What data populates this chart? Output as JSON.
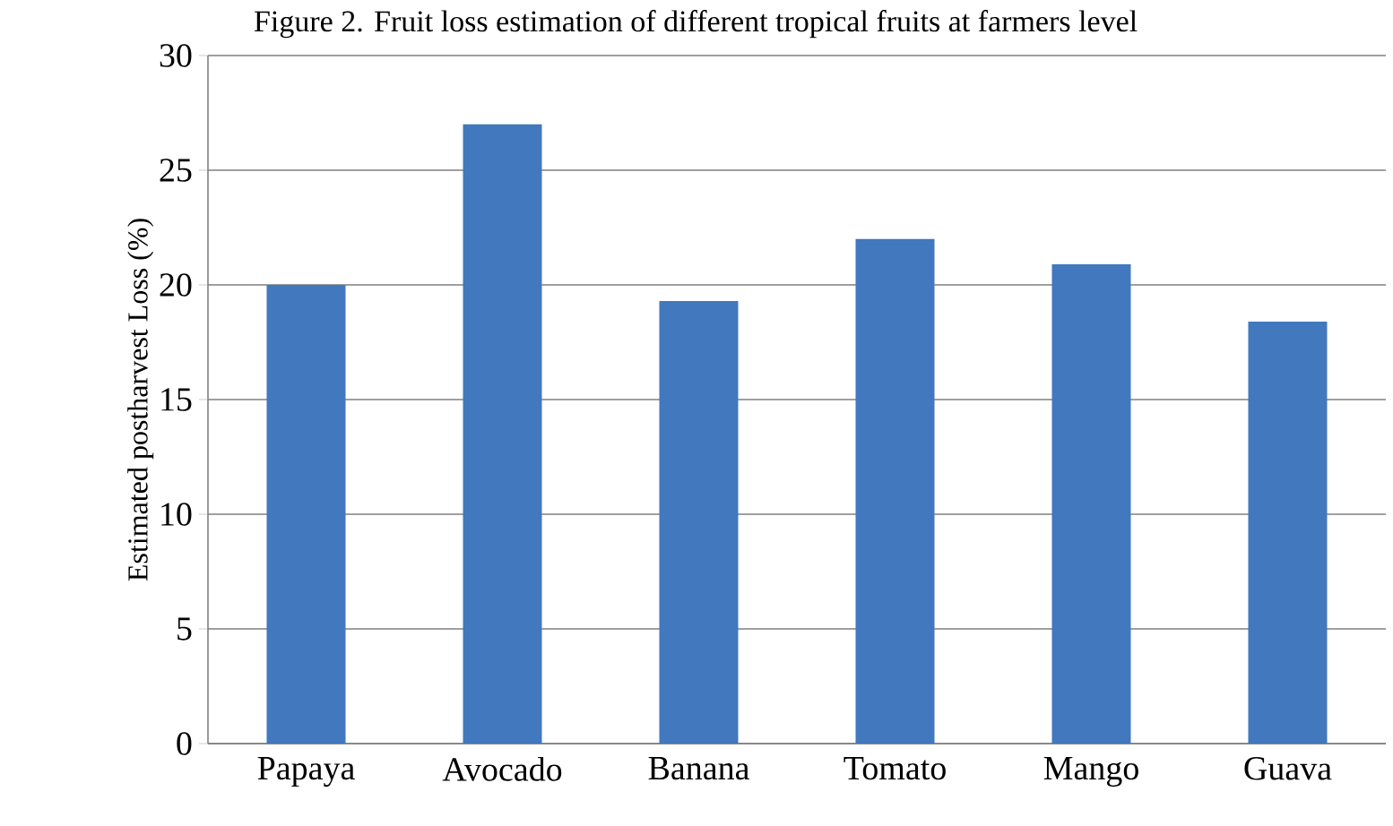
{
  "chart_data": {
    "type": "bar",
    "title": "Figure 2. Fruit loss estimation of different tropical fruits at farmers level",
    "ylabel": "Estimated postharvest Loss (%)",
    "categories": [
      "Papaya",
      "Avocado",
      "Banana",
      "Tomato",
      "Mango",
      "Guava"
    ],
    "values": [
      20.0,
      27.0,
      19.3,
      22.0,
      20.9,
      18.4
    ],
    "color": "#4178be",
    "ylim": [
      0,
      30
    ],
    "yticks": [
      0,
      5,
      10,
      15,
      20,
      25,
      30
    ],
    "grid": "y"
  }
}
